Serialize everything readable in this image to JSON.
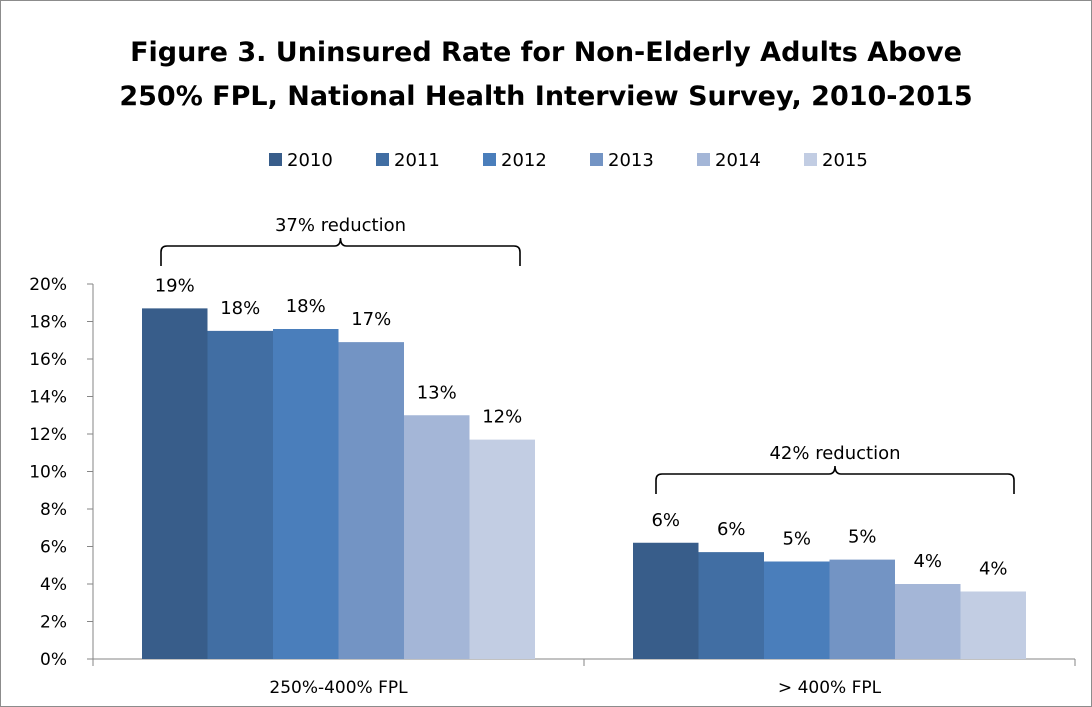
{
  "chart_data": {
    "type": "bar",
    "title_lines": [
      "Figure 3. Uninsured Rate for Non-Elderly Adults Above",
      "250% FPL, National Health Interview Survey, 2010-2015"
    ],
    "categories": [
      "250%-400% FPL",
      "> 400% FPL"
    ],
    "series": [
      {
        "name": "2010",
        "color": "#385d8a",
        "values": [
          18.7,
          6.2
        ],
        "labels": [
          "19%",
          "6%"
        ]
      },
      {
        "name": "2011",
        "color": "#416ea3",
        "values": [
          17.5,
          5.7
        ],
        "labels": [
          "18%",
          "6%"
        ]
      },
      {
        "name": "2012",
        "color": "#4a7ebb",
        "values": [
          17.6,
          5.2
        ],
        "labels": [
          "18%",
          "5%"
        ]
      },
      {
        "name": "2013",
        "color": "#7394c4",
        "values": [
          16.9,
          5.3
        ],
        "labels": [
          "17%",
          "5%"
        ]
      },
      {
        "name": "2014",
        "color": "#a4b6d7",
        "values": [
          13.0,
          4.0
        ],
        "labels": [
          "13%",
          "4%"
        ]
      },
      {
        "name": "2015",
        "color": "#c2cde3",
        "values": [
          11.7,
          3.6
        ],
        "labels": [
          "12%",
          "4%"
        ]
      }
    ],
    "y_ticks": [
      "0%",
      "2%",
      "4%",
      "6%",
      "8%",
      "10%",
      "12%",
      "14%",
      "16%",
      "18%",
      "20%"
    ],
    "ylim": [
      0,
      20
    ],
    "legend_position": "top",
    "grid": false,
    "annotations": [
      "37% reduction",
      "42% reduction"
    ]
  }
}
